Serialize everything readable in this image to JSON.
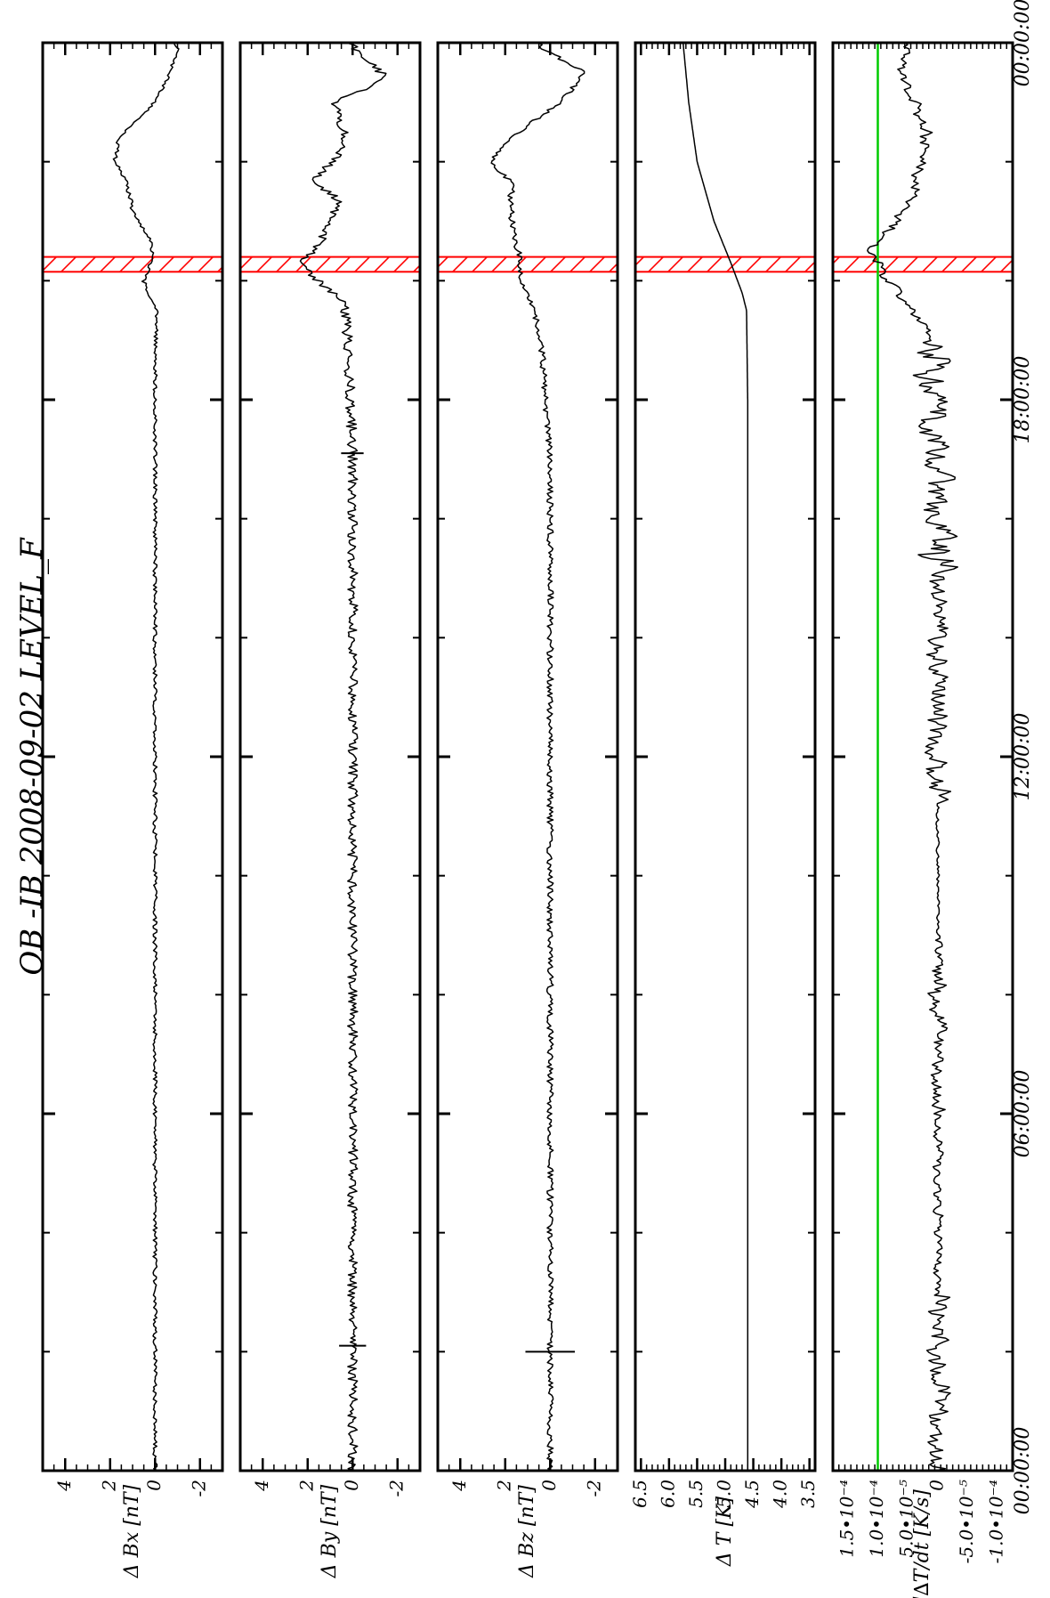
{
  "chart_data": {
    "type": "line",
    "title": "OB -IB  2008-09-02 LEVEL_F",
    "orientation": "rotated-90",
    "time_axis": {
      "range_hours": [
        0,
        24
      ],
      "labels": [
        {
          "h": 0,
          "text": "00:00:00"
        },
        {
          "h": 6,
          "text": "06:00:00"
        },
        {
          "h": 12,
          "text": "12:00:00"
        },
        {
          "h": 18,
          "text": "18:00:00"
        },
        {
          "h": 24,
          "text": "00:00:00"
        }
      ],
      "minor_tick_step_hours": 2
    },
    "highlight": {
      "start_h": 20.15,
      "end_h": 20.4,
      "color": "#ff0000",
      "pattern": "hatched"
    },
    "reference_line": {
      "panel": 4,
      "value": 0.0001,
      "color": "#00cc00"
    },
    "panels": [
      {
        "ylabel": "Δ Bx [nT]",
        "ylim": [
          -3,
          5
        ],
        "ticks": [
          {
            "v": 4,
            "t": "4"
          },
          {
            "v": 2,
            "t": "2"
          },
          {
            "v": 0,
            "t": "0"
          },
          {
            "v": -2,
            "t": "-2"
          }
        ],
        "minor_step": 0.5,
        "noise": 0.09,
        "spikes": [],
        "points": [
          [
            0,
            0
          ],
          [
            6,
            0
          ],
          [
            12,
            0
          ],
          [
            17,
            0
          ],
          [
            18.8,
            0
          ],
          [
            19.5,
            -0.1
          ],
          [
            19.8,
            0.3
          ],
          [
            20.0,
            0.5
          ],
          [
            20.3,
            0.2
          ],
          [
            20.6,
            0.1
          ],
          [
            21.2,
            1.0
          ],
          [
            21.7,
            1.3
          ],
          [
            22.0,
            1.8
          ],
          [
            22.4,
            1.6
          ],
          [
            23.0,
            0
          ],
          [
            23.5,
            -0.7
          ],
          [
            23.9,
            -1.0
          ],
          [
            24,
            -0.9
          ]
        ]
      },
      {
        "ylabel": "Δ By [nT]",
        "ylim": [
          -3,
          5
        ],
        "ticks": [
          {
            "v": 4,
            "t": "4"
          },
          {
            "v": 2,
            "t": "2"
          },
          {
            "v": 0,
            "t": "0"
          },
          {
            "v": -2,
            "t": "-2"
          }
        ],
        "minor_step": 0.5,
        "noise": 0.22,
        "spikes": [
          {
            "h": 2.1,
            "d": 0.6
          },
          {
            "h": 17.1,
            "d": 0.5
          }
        ],
        "points": [
          [
            0,
            0
          ],
          [
            6,
            0
          ],
          [
            12,
            0
          ],
          [
            17,
            0
          ],
          [
            19.0,
            0.2
          ],
          [
            19.6,
            0.4
          ],
          [
            20.0,
            1.5
          ],
          [
            20.3,
            2.3
          ],
          [
            20.6,
            1.5
          ],
          [
            21.0,
            1.1
          ],
          [
            21.3,
            0.5
          ],
          [
            21.7,
            1.7
          ],
          [
            22.1,
            0.6
          ],
          [
            22.5,
            0.4
          ],
          [
            23.0,
            0.8
          ],
          [
            23.4,
            -1.5
          ],
          [
            23.8,
            -0.5
          ],
          [
            24,
            0.2
          ]
        ]
      },
      {
        "ylabel": "Δ Bz [nT]",
        "ylim": [
          -3,
          5
        ],
        "ticks": [
          {
            "v": 4,
            "t": "4"
          },
          {
            "v": 2,
            "t": "2"
          },
          {
            "v": 0,
            "t": "0"
          },
          {
            "v": -2,
            "t": "-2"
          }
        ],
        "minor_step": 0.5,
        "noise": 0.14,
        "spikes": [
          {
            "h": 2.0,
            "d": 1.1
          }
        ],
        "points": [
          [
            0,
            0
          ],
          [
            6,
            0
          ],
          [
            12,
            0
          ],
          [
            17,
            0
          ],
          [
            19.0,
            0.4
          ],
          [
            19.6,
            0.8
          ],
          [
            20.0,
            1.4
          ],
          [
            20.3,
            1.3
          ],
          [
            20.6,
            1.5
          ],
          [
            21.0,
            1.7
          ],
          [
            21.4,
            1.8
          ],
          [
            21.6,
            1.6
          ],
          [
            22.0,
            2.7
          ],
          [
            22.4,
            1.8
          ],
          [
            23.0,
            -0.5
          ],
          [
            23.5,
            -1.5
          ],
          [
            23.9,
            0.3
          ],
          [
            24,
            0.5
          ]
        ]
      },
      {
        "ylabel": "Δ T [K]",
        "ylim": [
          3.4,
          6.6
        ],
        "ticks": [
          {
            "v": 6.5,
            "t": "6.5"
          },
          {
            "v": 6.0,
            "t": "6.0"
          },
          {
            "v": 5.5,
            "t": "5.5"
          },
          {
            "v": 5.0,
            "t": "5.0"
          },
          {
            "v": 4.5,
            "t": "4.5"
          },
          {
            "v": 4.0,
            "t": "4.0"
          },
          {
            "v": 3.5,
            "t": "3.5"
          }
        ],
        "minor_step": 0.1,
        "noise": 0,
        "spikes": [],
        "points": [
          [
            0,
            4.6
          ],
          [
            18,
            4.6
          ],
          [
            19.5,
            4.62
          ],
          [
            19.8,
            4.7
          ],
          [
            20.3,
            4.9
          ],
          [
            21,
            5.2
          ],
          [
            22,
            5.5
          ],
          [
            23,
            5.65
          ],
          [
            24,
            5.75
          ]
        ]
      },
      {
        "ylabel": "d∆T/dt [K/s]",
        "ylim": [
          -0.000125,
          0.000175
        ],
        "ticks": [
          {
            "v": 0.00015,
            "t": "1.5•10⁻⁴"
          },
          {
            "v": 0.0001,
            "t": "1.0•10⁻⁴"
          },
          {
            "v": 5e-05,
            "t": "5.0•10⁻⁵"
          },
          {
            "v": 0,
            "t": "0"
          },
          {
            "v": -5e-05,
            "t": "-5.0•10⁻⁵"
          },
          {
            "v": -0.0001,
            "t": "-1.0•10⁻⁴"
          }
        ],
        "minor_step": 1e-05,
        "noise": 0,
        "spikes": [],
        "points": [
          [
            0,
            0
          ],
          [
            6,
            0
          ],
          [
            12,
            0
          ],
          [
            18,
            0
          ],
          [
            19.3,
            2e-05
          ],
          [
            19.5,
            4e-05
          ],
          [
            19.9,
            7e-05
          ],
          [
            20.2,
            0.0001
          ],
          [
            20.5,
            0.00011
          ],
          [
            21.0,
            7e-05
          ],
          [
            21.5,
            4e-05
          ],
          [
            22.0,
            3e-05
          ],
          [
            22.5,
            2e-05
          ],
          [
            23.0,
            4e-05
          ],
          [
            23.5,
            6e-05
          ],
          [
            24,
            5e-05
          ]
        ]
      }
    ]
  }
}
